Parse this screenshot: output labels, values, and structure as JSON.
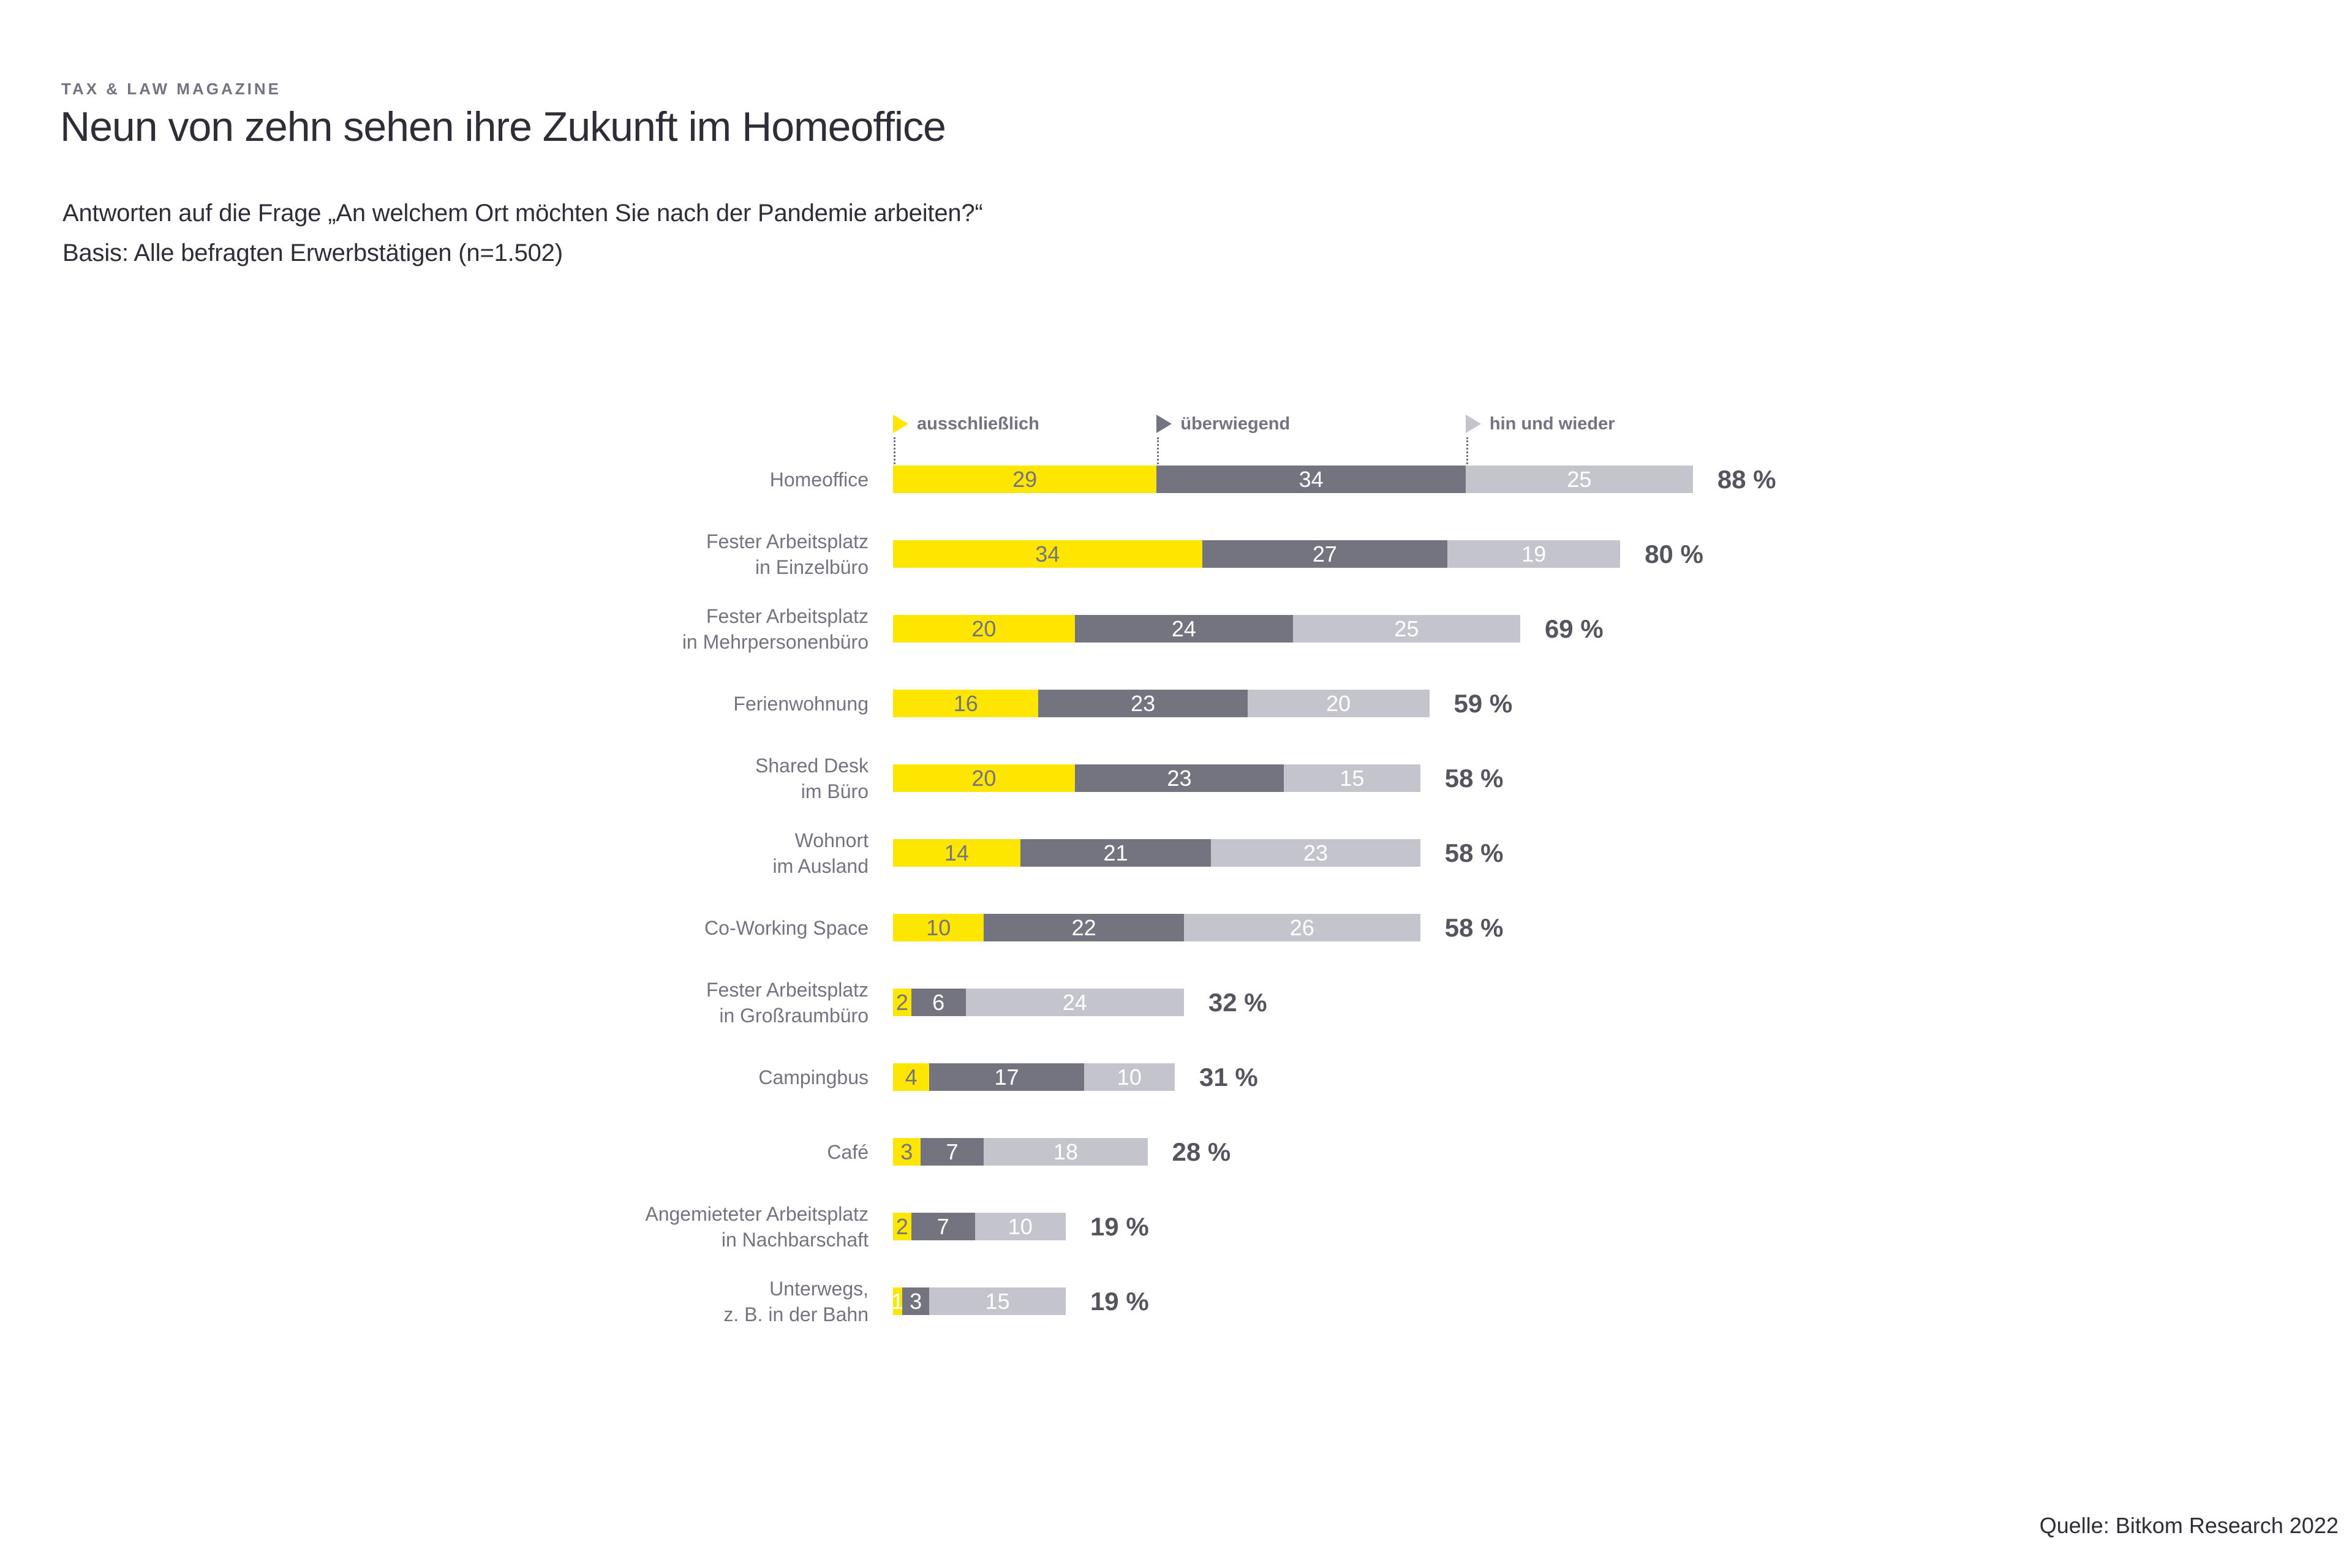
{
  "header": {
    "eyebrow": "TAX & LAW MAGAZINE",
    "title": "Neun von zehn sehen ihre Zukunft im Homeoffice",
    "subtitle_question": "Antworten auf die Frage „An welchem Ort möchten Sie nach der Pandemie arbeiten?“",
    "subtitle_basis": "Basis: Alle befragten Erwerbstätigen (n=1.502)"
  },
  "source": "Quelle: Bitkom Research 2022",
  "colors": {
    "exclusive": "#FFE600",
    "mostly": "#747480",
    "sometimes": "#C4C4CD",
    "text_dark": "#2E2E38",
    "text_gray": "#747480",
    "percent_text": "#55555E",
    "value_on_yellow": "#747480",
    "value_on_gray": "#FFFFFF",
    "dotted_line": "#70707C"
  },
  "chart_data": {
    "type": "bar",
    "orientation": "horizontal",
    "stacked": true,
    "unit": "percent",
    "x_max": 88,
    "grid": false,
    "legend_position": "top, anchored to first bar segment boundaries",
    "legend": [
      {
        "label": "ausschließlich",
        "color_key": "exclusive"
      },
      {
        "label": "überwiegend",
        "color_key": "mostly"
      },
      {
        "label": "hin und wieder",
        "color_key": "sometimes"
      }
    ],
    "legend_anchor_values": [
      0,
      29,
      63
    ],
    "series_names": [
      "ausschließlich",
      "überwiegend",
      "hin und wieder"
    ],
    "rows": [
      {
        "label_lines": [
          "Homeoffice"
        ],
        "values": [
          29,
          34,
          25
        ],
        "total": 88,
        "total_label": "88 %"
      },
      {
        "label_lines": [
          "Fester Arbeitsplatz",
          "in Einzelbüro"
        ],
        "values": [
          34,
          27,
          19
        ],
        "total": 80,
        "total_label": "80 %"
      },
      {
        "label_lines": [
          "Fester Arbeitsplatz",
          "in Mehrpersonenbüro"
        ],
        "values": [
          20,
          24,
          25
        ],
        "total": 69,
        "total_label": "69 %"
      },
      {
        "label_lines": [
          "Ferienwohnung"
        ],
        "values": [
          16,
          23,
          20
        ],
        "total": 59,
        "total_label": "59 %"
      },
      {
        "label_lines": [
          "Shared Desk",
          "im Büro"
        ],
        "values": [
          20,
          23,
          15
        ],
        "total": 58,
        "total_label": "58 %"
      },
      {
        "label_lines": [
          "Wohnort",
          "im Ausland"
        ],
        "values": [
          14,
          21,
          23
        ],
        "total": 58,
        "total_label": "58 %"
      },
      {
        "label_lines": [
          "Co-Working Space"
        ],
        "values": [
          10,
          22,
          26
        ],
        "total": 58,
        "total_label": "58 %"
      },
      {
        "label_lines": [
          "Fester Arbeitsplatz",
          "in Großraumbüro"
        ],
        "values": [
          2,
          6,
          24
        ],
        "total": 32,
        "total_label": "32 %"
      },
      {
        "label_lines": [
          "Campingbus"
        ],
        "values": [
          4,
          17,
          10
        ],
        "total": 31,
        "total_label": "31 %"
      },
      {
        "label_lines": [
          "Café"
        ],
        "values": [
          3,
          7,
          18
        ],
        "total": 28,
        "total_label": "28 %"
      },
      {
        "label_lines": [
          "Angemieteter Arbeitsplatz",
          "in Nachbarschaft"
        ],
        "values": [
          2,
          7,
          10
        ],
        "total": 19,
        "total_label": "19 %"
      },
      {
        "label_lines": [
          "Unterwegs,",
          "z. B. in der Bahn"
        ],
        "values": [
          1,
          3,
          15
        ],
        "total": 19,
        "total_label": "19 %"
      }
    ],
    "value_label_exceptions": [
      {
        "row_index": 11,
        "segment_index": 0,
        "color": "#FFFFFF"
      }
    ]
  }
}
